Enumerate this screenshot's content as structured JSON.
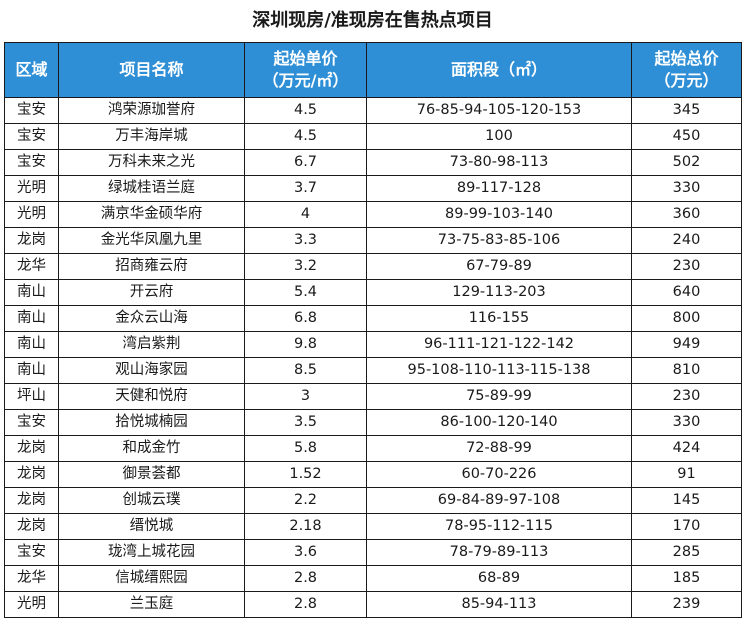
{
  "title": "深圳现房/准现房在售热点项目",
  "colors": {
    "header_bg": "#2e8fd6",
    "header_text": "#ffffff",
    "border": "#1a1a1a"
  },
  "table": {
    "headers": [
      [
        "区域"
      ],
      [
        "项目名称"
      ],
      [
        "起始单价",
        "（万元/㎡）"
      ],
      [
        "面积段（㎡）"
      ],
      [
        "起始总价",
        "（万元）"
      ]
    ],
    "rows": [
      [
        "宝安",
        "鸿荣源珈誉府",
        "4.5",
        "76-85-94-105-120-153",
        "345"
      ],
      [
        "宝安",
        "万丰海岸城",
        "4.5",
        "100",
        "450"
      ],
      [
        "宝安",
        "万科未来之光",
        "6.7",
        "73-80-98-113",
        "502"
      ],
      [
        "光明",
        "绿城桂语兰庭",
        "3.7",
        "89-117-128",
        "330"
      ],
      [
        "光明",
        "满京华金硕华府",
        "4",
        "89-99-103-140",
        "360"
      ],
      [
        "龙岗",
        "金光华凤凰九里",
        "3.3",
        "73-75-83-85-106",
        "240"
      ],
      [
        "龙华",
        "招商雍云府",
        "3.2",
        "67-79-89",
        "230"
      ],
      [
        "南山",
        "开云府",
        "5.4",
        "129-113-203",
        "640"
      ],
      [
        "南山",
        "金众云山海",
        "6.8",
        "116-155",
        "800"
      ],
      [
        "南山",
        "湾启紫荆",
        "9.8",
        "96-111-121-122-142",
        "949"
      ],
      [
        "南山",
        "观山海家园",
        "8.5",
        "95-108-110-113-115-138",
        "810"
      ],
      [
        "坪山",
        "天健和悦府",
        "3",
        "75-89-99",
        "230"
      ],
      [
        "宝安",
        "拾悦城楠园",
        "3.5",
        "86-100-120-140",
        "330"
      ],
      [
        "龙岗",
        "和成金竹",
        "5.8",
        "72-88-99",
        "424"
      ],
      [
        "龙岗",
        "御景荟都",
        "1.52",
        "60-70-226",
        "91"
      ],
      [
        "龙岗",
        "创城云璞",
        "2.2",
        "69-84-89-97-108",
        "145"
      ],
      [
        "龙岗",
        "缙悦城",
        "2.18",
        "78-95-112-115",
        "170"
      ],
      [
        "宝安",
        "珑湾上城花园",
        "3.6",
        "78-79-89-113",
        "285"
      ],
      [
        "龙华",
        "信城缙熙园",
        "2.8",
        "68-89",
        "185"
      ],
      [
        "光明",
        "兰玉庭",
        "2.8",
        "85-94-113",
        "239"
      ]
    ]
  }
}
